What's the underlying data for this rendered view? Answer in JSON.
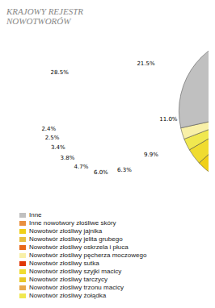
{
  "chart_data": {
    "type": "pie",
    "title": "KRAJOWY REJESTR",
    "subtitle": "NOWOTWORÓW",
    "categories": [
      "Nowotwór złośliwy sutka",
      "Nowotwór złośliwy oskrzela i płuca",
      "Inne nowotwory złośliwe skóry",
      "Nowotwór złośliwy trzonu macicy",
      "Nowotwór złośliwy jelita grubego",
      "Nowotwór złośliwy tarczycy",
      "Nowotwór złośliwy jajnika",
      "Nowotwór złośliwy szyjki macicy",
      "Nowotwór złośliwy żołądka",
      "Nowotwór złośliwy pęcherza moczowego",
      "Inne"
    ],
    "values": [
      21.5,
      11.0,
      9.9,
      6.3,
      6.0,
      4.7,
      3.8,
      3.4,
      2.5,
      2.4,
      28.5
    ],
    "value_labels": [
      "21.5%",
      "11.0%",
      "9.9%",
      "6.3%",
      "6.0%",
      "4.7%",
      "3.8%",
      "3.4%",
      "2.5%",
      "2.4%",
      "28.5%"
    ],
    "colors": [
      "#E03808",
      "#E86818",
      "#E89040",
      "#E8A84C",
      "#E8C040",
      "#E8C828",
      "#F0D018",
      "#F0DC30",
      "#F0E850",
      "#F8F0A8",
      "#C0C0C0"
    ],
    "data_labels": true,
    "legend": "bottom"
  }
}
